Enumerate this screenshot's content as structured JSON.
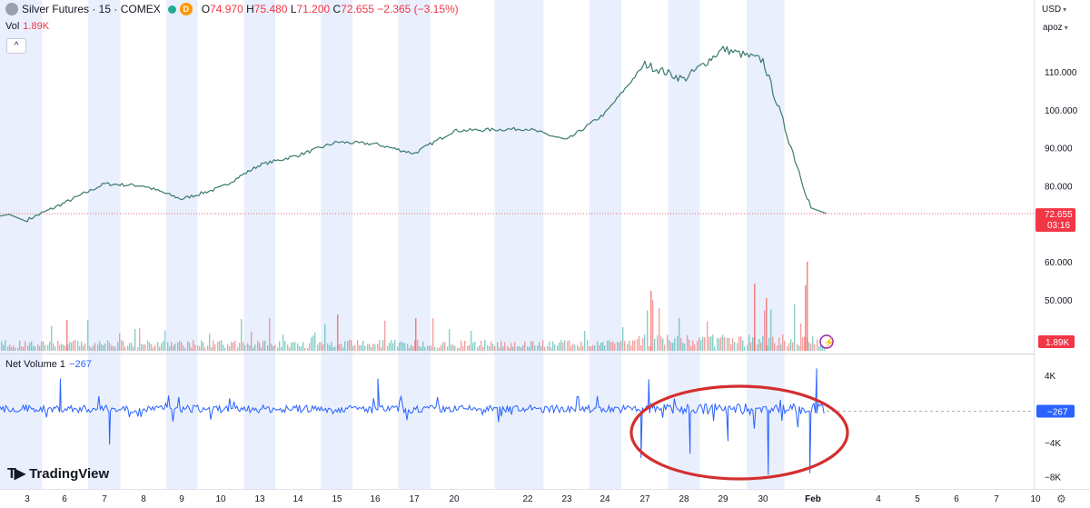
{
  "header": {
    "symbol_title": "Silver Futures · 15 · COMEX",
    "badge_letter": "D",
    "ohlc": {
      "open_label": "O",
      "open": "74.970",
      "high_label": "H",
      "high": "75.480",
      "low_label": "L",
      "low": "71.200",
      "close_label": "C",
      "close": "72.655",
      "change": "−2.365 (−3.15%)"
    },
    "volume_label": "Vol",
    "volume_value": "1.89K",
    "collapse_glyph": "^"
  },
  "scale": {
    "currency": "USD",
    "unit": "apoz"
  },
  "indicator": {
    "name": "Net Volume 1",
    "value": "−267"
  },
  "brand": "TradingView",
  "colors": {
    "up": "#26a69a",
    "down": "#ef5350",
    "net_volume": "#2962ff",
    "accent_red": "#f23645",
    "session_band": "#e9effd",
    "annotation_circle": "#d32f2f"
  },
  "chart_data": [
    {
      "type": "line",
      "title": "Silver Futures · 15 · COMEX",
      "x_tick_labels": [
        "3",
        "6",
        "7",
        "8",
        "9",
        "10",
        "13",
        "14",
        "15",
        "16",
        "17",
        "20",
        "22",
        "23",
        "24",
        "27",
        "28",
        "29",
        "30",
        "Feb",
        "4",
        "5",
        "6",
        "7",
        "10"
      ],
      "y_tick_labels": [
        "110.000",
        "100.000",
        "90.000",
        "80.000",
        "60.000",
        "50.000"
      ],
      "ylim": [
        40,
        120
      ],
      "series": [
        {
          "approx_close_by_day": [
            {
              "x": "3",
              "y": 71.0
            },
            {
              "x": "6",
              "y": 75.5
            },
            {
              "x": "7",
              "y": 80.5
            },
            {
              "x": "8",
              "y": 80.0
            },
            {
              "x": "9",
              "y": 76.5
            },
            {
              "x": "10",
              "y": 79.5
            },
            {
              "x": "13",
              "y": 85.5
            },
            {
              "x": "14",
              "y": 88.0
            },
            {
              "x": "15",
              "y": 91.5
            },
            {
              "x": "16",
              "y": 91.0
            },
            {
              "x": "17",
              "y": 88.5
            },
            {
              "x": "20",
              "y": 94.5
            },
            {
              "x": "22",
              "y": 95.0
            },
            {
              "x": "23",
              "y": 92.0
            },
            {
              "x": "24",
              "y": 99.0
            },
            {
              "x": "27",
              "y": 112.0
            },
            {
              "x": "28",
              "y": 108.0
            },
            {
              "x": "29",
              "y": 116.0
            },
            {
              "x": "30",
              "y": 113.0
            },
            {
              "x": "Feb",
              "y": 72.655
            }
          ]
        }
      ],
      "last_price_label": "72.655",
      "countdown": "03:16",
      "grid": true
    },
    {
      "type": "bar",
      "title": "Vol",
      "last_label": "1.89K",
      "note": "volume histogram with spikes near 27–31"
    },
    {
      "type": "line",
      "title": "Net Volume 1",
      "y_tick_labels": [
        "4K",
        "−4K",
        "−8K"
      ],
      "ylim": [
        -8500,
        5500
      ],
      "last_label": "−267",
      "spikes": [
        {
          "x": "6",
          "y": 3600
        },
        {
          "x": "7",
          "y": -4200
        },
        {
          "x": "16",
          "y": 3600
        },
        {
          "x": "27",
          "y": -5800
        },
        {
          "x": "27",
          "y": 3500
        },
        {
          "x": "28",
          "y": -5300
        },
        {
          "x": "29",
          "y": -3800
        },
        {
          "x": "30",
          "y": -7800
        },
        {
          "x": "Feb",
          "y": -7600
        },
        {
          "x": "Feb",
          "y": 4800
        }
      ],
      "annotation": "red ellipse drawn around 27–Feb region"
    }
  ]
}
